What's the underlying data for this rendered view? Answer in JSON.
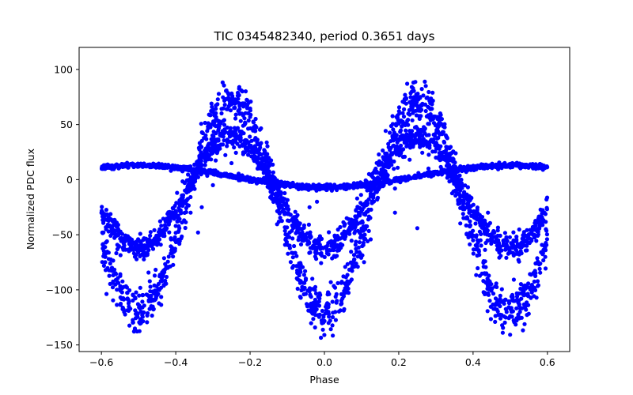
{
  "chart_data": {
    "type": "scatter",
    "title": "TIC 0345482340, period 0.3651 days",
    "xlabel": "Phase",
    "ylabel": "Normalized PDC flux",
    "xlim": [
      -0.66,
      0.66
    ],
    "ylim": [
      -156,
      120
    ],
    "xticks": [
      -0.6,
      -0.4,
      -0.2,
      0.0,
      0.2,
      0.4,
      0.6
    ],
    "xtick_labels": [
      "−0.6",
      "−0.4",
      "−0.2",
      "0.0",
      "0.2",
      "0.4",
      "0.6"
    ],
    "yticks": [
      -150,
      -100,
      -50,
      0,
      50,
      100
    ],
    "ytick_labels": [
      "−150",
      "−100",
      "−50",
      "0",
      "50",
      "100"
    ],
    "grid": false,
    "marker_color": "#0000ff",
    "series": [
      {
        "name": "",
        "x_range": [
          -0.6,
          0.6
        ],
        "components": [
          {
            "amplitude": 95,
            "frequency": 2,
            "phase_shift": 0.5,
            "offset": -25,
            "scatter": 18
          },
          {
            "amplitude": 50,
            "frequency": 2,
            "phase_shift": 0.5,
            "offset": -12,
            "scatter": 10
          },
          {
            "amplitude": 10,
            "frequency": 1,
            "phase_shift": 0.0,
            "offset": 3,
            "scatter": 2
          }
        ],
        "outliers": [
          {
            "x": -0.585,
            "y": -56
          },
          {
            "x": -0.4,
            "y": -42
          },
          {
            "x": -0.36,
            "y": -30
          },
          {
            "x": -0.33,
            "y": -25
          },
          {
            "x": -0.3,
            "y": -5
          },
          {
            "x": -0.27,
            "y": 5
          },
          {
            "x": -0.25,
            "y": 15
          },
          {
            "x": -0.18,
            "y": 10
          },
          {
            "x": -0.08,
            "y": -5
          },
          {
            "x": -0.04,
            "y": -25
          },
          {
            "x": -0.02,
            "y": -20
          },
          {
            "x": 0.02,
            "y": -10
          },
          {
            "x": 0.06,
            "y": -35
          },
          {
            "x": 0.09,
            "y": -40
          },
          {
            "x": 0.12,
            "y": 5
          },
          {
            "x": 0.19,
            "y": -30
          },
          {
            "x": 0.25,
            "y": -44
          },
          {
            "x": 0.28,
            "y": 10
          },
          {
            "x": 0.3,
            "y": 20
          },
          {
            "x": 0.33,
            "y": 8
          },
          {
            "x": 0.36,
            "y": -20
          },
          {
            "x": 0.38,
            "y": -35
          },
          {
            "x": 0.4,
            "y": -55
          },
          {
            "x": 0.42,
            "y": -55
          },
          {
            "x": 0.44,
            "y": -30
          },
          {
            "x": 0.19,
            "y": -8
          },
          {
            "x": -0.34,
            "y": -48
          }
        ]
      }
    ]
  }
}
